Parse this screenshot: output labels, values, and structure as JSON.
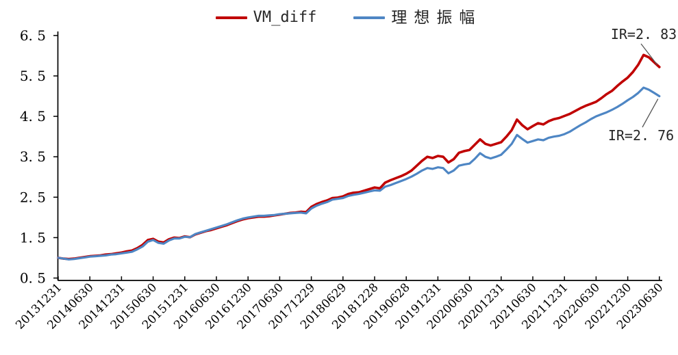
{
  "page": {
    "background": "#ffffff"
  },
  "legend": {
    "items": [
      {
        "label": "VM_diff",
        "color": "#c00000"
      },
      {
        "label": "理想振幅",
        "color": "#4e86c4"
      }
    ]
  },
  "annotations": [
    {
      "label": "IR=2.83",
      "display": "IR=2. 83",
      "series": "VM_diff"
    },
    {
      "label": "IR=2.76",
      "display": "IR=2. 76",
      "series": "理想振幅"
    }
  ],
  "chart_data": {
    "type": "line",
    "title": "",
    "xlabel": "",
    "ylabel": "",
    "grid": false,
    "legend_position": "top-center",
    "ylim": [
      0.5,
      6.5
    ],
    "y_ticks": [
      0.5,
      1.5,
      2.5,
      3.5,
      4.5,
      5.5,
      6.5
    ],
    "y_tick_display": [
      "0. 5",
      "1. 5",
      "2. 5",
      "3. 5",
      "4. 5",
      "5. 5",
      "6. 5"
    ],
    "x_tick_labels": [
      "20131231",
      "20140630",
      "20141231",
      "20150630",
      "20151231",
      "20160630",
      "20161230",
      "20170630",
      "20171229",
      "20180629",
      "20181228",
      "20190628",
      "20191231",
      "20200630",
      "20201231",
      "20210630",
      "20211231",
      "20220630",
      "20221230",
      "20230630"
    ],
    "points_per_tick_interval": 6,
    "axis_color": "#000000",
    "annotation_line_color": "#555555",
    "series": [
      {
        "name": "VM_diff",
        "color": "#c00000",
        "width": 3.6,
        "end_label": "IR=2.83",
        "values": [
          1.0,
          0.98,
          0.97,
          0.98,
          1.0,
          1.02,
          1.04,
          1.05,
          1.06,
          1.08,
          1.09,
          1.11,
          1.13,
          1.16,
          1.18,
          1.24,
          1.32,
          1.44,
          1.47,
          1.4,
          1.38,
          1.46,
          1.5,
          1.49,
          1.53,
          1.51,
          1.58,
          1.62,
          1.66,
          1.69,
          1.73,
          1.77,
          1.81,
          1.86,
          1.91,
          1.95,
          1.98,
          2.0,
          2.02,
          2.02,
          2.03,
          2.05,
          2.07,
          2.09,
          2.11,
          2.12,
          2.14,
          2.13,
          2.26,
          2.33,
          2.38,
          2.42,
          2.48,
          2.49,
          2.52,
          2.58,
          2.61,
          2.62,
          2.66,
          2.7,
          2.74,
          2.72,
          2.86,
          2.92,
          2.97,
          3.02,
          3.08,
          3.16,
          3.28,
          3.4,
          3.5,
          3.47,
          3.52,
          3.5,
          3.36,
          3.44,
          3.6,
          3.64,
          3.67,
          3.8,
          3.93,
          3.82,
          3.78,
          3.82,
          3.86,
          4.0,
          4.16,
          4.42,
          4.28,
          4.18,
          4.26,
          4.33,
          4.3,
          4.38,
          4.43,
          4.46,
          4.51,
          4.56,
          4.63,
          4.7,
          4.76,
          4.81,
          4.86,
          4.95,
          5.05,
          5.13,
          5.25,
          5.36,
          5.46,
          5.6,
          5.78,
          6.02,
          5.96,
          5.84,
          5.72
        ]
      },
      {
        "name": "理想振幅",
        "color": "#4e86c4",
        "width": 3.2,
        "end_label": "IR=2.76",
        "values": [
          1.0,
          0.98,
          0.96,
          0.97,
          0.99,
          1.01,
          1.03,
          1.04,
          1.05,
          1.06,
          1.08,
          1.09,
          1.11,
          1.13,
          1.15,
          1.21,
          1.28,
          1.4,
          1.44,
          1.37,
          1.35,
          1.43,
          1.48,
          1.48,
          1.52,
          1.51,
          1.59,
          1.63,
          1.67,
          1.71,
          1.75,
          1.79,
          1.83,
          1.88,
          1.93,
          1.97,
          2.0,
          2.02,
          2.04,
          2.04,
          2.05,
          2.06,
          2.08,
          2.09,
          2.1,
          2.11,
          2.12,
          2.1,
          2.22,
          2.29,
          2.34,
          2.38,
          2.44,
          2.46,
          2.48,
          2.53,
          2.56,
          2.58,
          2.61,
          2.64,
          2.67,
          2.66,
          2.76,
          2.8,
          2.85,
          2.9,
          2.95,
          3.01,
          3.08,
          3.16,
          3.22,
          3.2,
          3.24,
          3.22,
          3.09,
          3.16,
          3.28,
          3.31,
          3.33,
          3.45,
          3.59,
          3.5,
          3.46,
          3.5,
          3.55,
          3.68,
          3.82,
          4.04,
          3.94,
          3.85,
          3.89,
          3.93,
          3.91,
          3.97,
          4.0,
          4.02,
          4.06,
          4.12,
          4.2,
          4.28,
          4.35,
          4.43,
          4.5,
          4.55,
          4.6,
          4.66,
          4.73,
          4.81,
          4.9,
          4.98,
          5.08,
          5.21,
          5.16,
          5.08,
          5.0
        ]
      }
    ]
  }
}
